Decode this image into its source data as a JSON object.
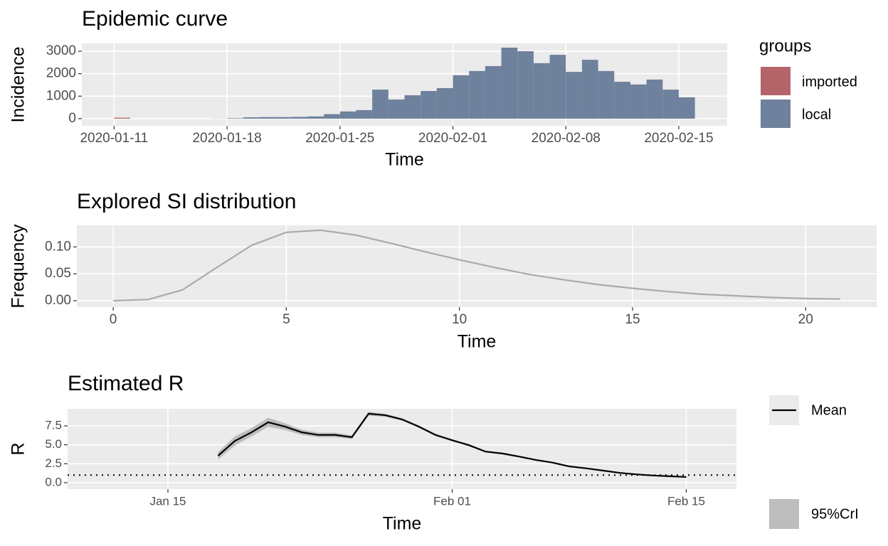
{
  "chart_data": [
    {
      "type": "bar",
      "stacked": true,
      "title": "Epidemic curve",
      "x_label": "Time",
      "y_label": "Incidence",
      "x": [
        "2020-01-11",
        "2020-01-12",
        "2020-01-13",
        "2020-01-14",
        "2020-01-15",
        "2020-01-16",
        "2020-01-17",
        "2020-01-18",
        "2020-01-19",
        "2020-01-20",
        "2020-01-21",
        "2020-01-22",
        "2020-01-23",
        "2020-01-24",
        "2020-01-25",
        "2020-01-26",
        "2020-01-27",
        "2020-01-28",
        "2020-01-29",
        "2020-01-30",
        "2020-01-31",
        "2020-02-01",
        "2020-02-02",
        "2020-02-03",
        "2020-02-04",
        "2020-02-05",
        "2020-02-06",
        "2020-02-07",
        "2020-02-08",
        "2020-02-09",
        "2020-02-10",
        "2020-02-11",
        "2020-02-12",
        "2020-02-13",
        "2020-02-14",
        "2020-02-15"
      ],
      "series": [
        {
          "name": "imported",
          "color": "#b5646a",
          "values": [
            41,
            0,
            0,
            0,
            0,
            0,
            0,
            0,
            0,
            0,
            0,
            0,
            0,
            0,
            0,
            0,
            0,
            0,
            0,
            0,
            0,
            0,
            0,
            0,
            0,
            0,
            0,
            0,
            0,
            0,
            0,
            0,
            0,
            0,
            0,
            0
          ]
        },
        {
          "name": "local",
          "color": "#6e819d",
          "values": [
            0,
            0,
            0,
            0,
            0,
            0,
            5,
            20,
            60,
            70,
            70,
            80,
            100,
            200,
            320,
            380,
            1290,
            850,
            1040,
            1230,
            1360,
            1930,
            2120,
            2340,
            3160,
            3000,
            2470,
            2840,
            2080,
            2620,
            2120,
            1640,
            1520,
            1740,
            1290,
            950
          ]
        }
      ],
      "xlim": [
        "2020-01-09",
        "2020-02-18"
      ],
      "xticks": [
        "2020-01-11",
        "2020-01-18",
        "2020-01-25",
        "2020-02-01",
        "2020-02-08",
        "2020-02-15"
      ],
      "ylim": [
        -320,
        3350
      ],
      "yticks": [
        0,
        1000,
        2000,
        3000
      ],
      "grid": true,
      "legend_title": "groups",
      "legend": "right"
    },
    {
      "type": "line",
      "title": "Explored SI distribution",
      "x_label": "Time",
      "y_label": "Frequency",
      "x": [
        0,
        1,
        2,
        3,
        4,
        5,
        6,
        7,
        8,
        9,
        10,
        11,
        12,
        13,
        14,
        15,
        16,
        17,
        18,
        19,
        20,
        21
      ],
      "series": [
        {
          "color": "#aaaaaa",
          "values": [
            0,
            0.002,
            0.02,
            0.062,
            0.103,
            0.127,
            0.131,
            0.122,
            0.107,
            0.091,
            0.076,
            0.062,
            0.049,
            0.039,
            0.03,
            0.023,
            0.017,
            0.012,
            0.009,
            0.006,
            0.004,
            0.003
          ]
        }
      ],
      "xlim": [
        -1.05,
        22.05
      ],
      "xticks": [
        0,
        5,
        10,
        15,
        20
      ],
      "ylim": [
        -0.012,
        0.14
      ],
      "yticks": [
        {
          "value": 0,
          "label": "0.00"
        },
        0.05,
        {
          "value": 0.1,
          "label": "0.10"
        }
      ],
      "grid": true
    },
    {
      "type": "line",
      "title": "Estimated R",
      "x_label": "Time",
      "y_label": "R",
      "x": [
        "Jan 18",
        "Jan 19",
        "Jan 20",
        "Jan 21",
        "Jan 22",
        "Jan 23",
        "Jan 24",
        "Jan 25",
        "Jan 26",
        "Jan 27",
        "Jan 28",
        "Jan 29",
        "Jan 30",
        "Jan 31",
        "Feb 01",
        "Feb 02",
        "Feb 03",
        "Feb 04",
        "Feb 05",
        "Feb 06",
        "Feb 07",
        "Feb 08",
        "Feb 09",
        "Feb 10",
        "Feb 11",
        "Feb 12",
        "Feb 13",
        "Feb 14",
        "Feb 15"
      ],
      "series": [
        {
          "name": "Mean",
          "color": "#000000",
          "values": [
            3.56,
            5.5,
            6.65,
            7.97,
            7.4,
            6.65,
            6.3,
            6.3,
            6.0,
            9.1,
            8.9,
            8.35,
            7.4,
            6.3,
            5.6,
            4.95,
            4.1,
            3.85,
            3.45,
            3.0,
            2.65,
            2.15,
            1.9,
            1.6,
            1.3,
            1.1,
            0.95,
            0.85,
            0.75
          ]
        }
      ],
      "band": {
        "name": "95%CrI",
        "color": "#bdbdbd",
        "lower": [
          3.06,
          4.9,
          6.1,
          7.37,
          6.95,
          6.3,
          6.0,
          6.0,
          5.75,
          8.85,
          8.7,
          8.2,
          7.25,
          6.15,
          5.45,
          4.82,
          3.98,
          3.74,
          3.35,
          2.91,
          2.57,
          2.08,
          1.84,
          1.55,
          1.26,
          1.06,
          0.92,
          0.82,
          0.72
        ],
        "upper": [
          4.06,
          6.1,
          7.2,
          8.57,
          7.85,
          7.0,
          6.6,
          6.6,
          6.25,
          9.35,
          9.1,
          8.5,
          7.55,
          6.45,
          5.75,
          5.08,
          4.22,
          3.96,
          3.55,
          3.09,
          2.73,
          2.22,
          1.96,
          1.65,
          1.34,
          1.14,
          0.98,
          0.88,
          0.78
        ]
      },
      "hline": 1,
      "xlim": [
        "Jan 09",
        "Feb 18"
      ],
      "xticks": [
        "Jan 15",
        "Feb 01",
        "Feb 15"
      ],
      "ylim": [
        -0.85,
        9.75
      ],
      "yticks": [
        {
          "value": 0,
          "label": "0.0"
        },
        2.5,
        {
          "value": 5,
          "label": "5.0"
        },
        7.5
      ],
      "grid": true,
      "legend": "right"
    }
  ]
}
